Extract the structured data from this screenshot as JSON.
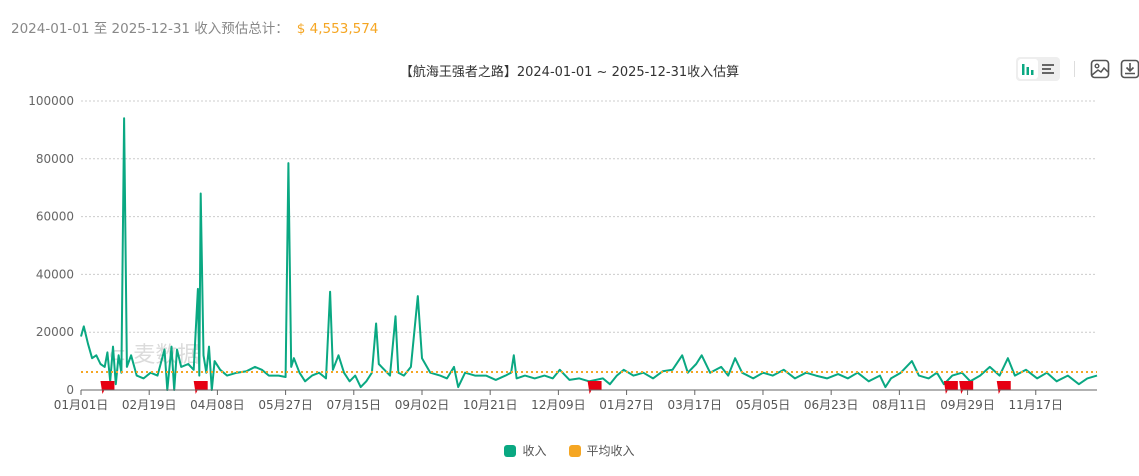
{
  "summary": {
    "range": "2024-01-01 至 2025-12-31 收入预估总计：",
    "total": "$ 4,553,574"
  },
  "toolbar": {
    "icons": [
      "bar-chart-icon",
      "list-icon",
      "image-icon",
      "download-icon"
    ]
  },
  "watermark": "麦数据",
  "colors": {
    "income": "#0aa882",
    "average": "#f5a623",
    "flag": "#e60012"
  },
  "chart_data": {
    "type": "line",
    "title": "【航海王强者之路】2024-01-01 ~ 2025-12-31收入估算",
    "ylim": [
      0,
      100000
    ],
    "yticks": [
      0,
      20000,
      40000,
      60000,
      80000,
      100000
    ],
    "xlim": [
      "2024-01-01",
      "2025-12-31"
    ],
    "xticks": [
      [
        "2024-01-01",
        "01月01日"
      ],
      [
        "2024-02-19",
        "02月19日"
      ],
      [
        "2024-04-08",
        "04月08日"
      ],
      [
        "2024-05-27",
        "05月27日"
      ],
      [
        "2024-07-15",
        "07月15日"
      ],
      [
        "2024-09-02",
        "09月02日"
      ],
      [
        "2024-10-21",
        "10月21日"
      ],
      [
        "2024-12-09",
        "12月09日"
      ],
      [
        "2025-01-27",
        "01月27日"
      ],
      [
        "2025-03-17",
        "03月17日"
      ],
      [
        "2025-05-05",
        "05月05日"
      ],
      [
        "2025-06-23",
        "06月23日"
      ],
      [
        "2025-08-11",
        "08月11日"
      ],
      [
        "2025-09-29",
        "09月29日"
      ],
      [
        "2025-11-17",
        "11月17日"
      ]
    ],
    "grid": true,
    "legend_position": "bottom",
    "series": [
      {
        "name": "收入",
        "color": "#0aa882",
        "points": [
          [
            "2024-01-01",
            18500
          ],
          [
            "2024-01-03",
            22000
          ],
          [
            "2024-01-06",
            16000
          ],
          [
            "2024-01-09",
            11000
          ],
          [
            "2024-01-12",
            12000
          ],
          [
            "2024-01-15",
            9000
          ],
          [
            "2024-01-18",
            8000
          ],
          [
            "2024-01-20",
            13000
          ],
          [
            "2024-01-22",
            3000
          ],
          [
            "2024-01-24",
            15000
          ],
          [
            "2024-01-26",
            2000
          ],
          [
            "2024-01-28",
            12000
          ],
          [
            "2024-01-30",
            6000
          ],
          [
            "2024-02-01",
            94000
          ],
          [
            "2024-02-03",
            8000
          ],
          [
            "2024-02-06",
            12000
          ],
          [
            "2024-02-10",
            5000
          ],
          [
            "2024-02-15",
            4000
          ],
          [
            "2024-02-20",
            6000
          ],
          [
            "2024-02-25",
            5000
          ],
          [
            "2024-03-01",
            14000
          ],
          [
            "2024-03-03",
            0
          ],
          [
            "2024-03-06",
            15000
          ],
          [
            "2024-03-08",
            0
          ],
          [
            "2024-03-10",
            14000
          ],
          [
            "2024-03-13",
            8000
          ],
          [
            "2024-03-18",
            9000
          ],
          [
            "2024-03-22",
            7000
          ],
          [
            "2024-03-25",
            35000
          ],
          [
            "2024-03-26",
            5000
          ],
          [
            "2024-03-27",
            68000
          ],
          [
            "2024-03-29",
            12000
          ],
          [
            "2024-03-31",
            6000
          ],
          [
            "2024-04-02",
            15000
          ],
          [
            "2024-04-04",
            0
          ],
          [
            "2024-04-06",
            10000
          ],
          [
            "2024-04-10",
            7000
          ],
          [
            "2024-04-15",
            5000
          ],
          [
            "2024-04-22",
            6000
          ],
          [
            "2024-04-29",
            6500
          ],
          [
            "2024-05-05",
            8000
          ],
          [
            "2024-05-10",
            7000
          ],
          [
            "2024-05-15",
            5000
          ],
          [
            "2024-05-22",
            5000
          ],
          [
            "2024-05-27",
            4500
          ],
          [
            "2024-05-29",
            78500
          ],
          [
            "2024-05-31",
            8000
          ],
          [
            "2024-06-02",
            11000
          ],
          [
            "2024-06-06",
            6000
          ],
          [
            "2024-06-10",
            3000
          ],
          [
            "2024-06-15",
            5000
          ],
          [
            "2024-06-20",
            6000
          ],
          [
            "2024-06-25",
            4000
          ],
          [
            "2024-06-28",
            34000
          ],
          [
            "2024-06-30",
            7000
          ],
          [
            "2024-07-04",
            12000
          ],
          [
            "2024-07-08",
            6000
          ],
          [
            "2024-07-12",
            3000
          ],
          [
            "2024-07-16",
            5000
          ],
          [
            "2024-07-20",
            1000
          ],
          [
            "2024-07-24",
            3000
          ],
          [
            "2024-07-28",
            6000
          ],
          [
            "2024-07-31",
            23000
          ],
          [
            "2024-08-02",
            9000
          ],
          [
            "2024-08-06",
            7000
          ],
          [
            "2024-08-10",
            5000
          ],
          [
            "2024-08-14",
            25500
          ],
          [
            "2024-08-16",
            6000
          ],
          [
            "2024-08-20",
            5000
          ],
          [
            "2024-08-25",
            8000
          ],
          [
            "2024-08-30",
            32500
          ],
          [
            "2024-09-02",
            11000
          ],
          [
            "2024-09-08",
            6000
          ],
          [
            "2024-09-15",
            5000
          ],
          [
            "2024-09-20",
            4000
          ],
          [
            "2024-09-25",
            8000
          ],
          [
            "2024-09-28",
            1000
          ],
          [
            "2024-10-03",
            6000
          ],
          [
            "2024-10-10",
            5000
          ],
          [
            "2024-10-18",
            5000
          ],
          [
            "2024-10-25",
            3500
          ],
          [
            "2024-11-01",
            5000
          ],
          [
            "2024-11-05",
            6000
          ],
          [
            "2024-11-07",
            12000
          ],
          [
            "2024-11-09",
            4000
          ],
          [
            "2024-11-15",
            5000
          ],
          [
            "2024-11-22",
            4000
          ],
          [
            "2024-11-29",
            5000
          ],
          [
            "2024-12-05",
            4000
          ],
          [
            "2024-12-10",
            7000
          ],
          [
            "2024-12-17",
            3500
          ],
          [
            "2024-12-24",
            4000
          ],
          [
            "2024-12-31",
            3000
          ],
          [
            "2025-01-05",
            3500
          ],
          [
            "2025-01-10",
            4000
          ],
          [
            "2025-01-15",
            2000
          ],
          [
            "2025-01-20",
            5000
          ],
          [
            "2025-01-25",
            7000
          ],
          [
            "2025-02-01",
            5000
          ],
          [
            "2025-02-08",
            6000
          ],
          [
            "2025-02-15",
            4000
          ],
          [
            "2025-02-22",
            6500
          ],
          [
            "2025-03-01",
            7000
          ],
          [
            "2025-03-08",
            12000
          ],
          [
            "2025-03-12",
            6000
          ],
          [
            "2025-03-18",
            9000
          ],
          [
            "2025-03-22",
            12000
          ],
          [
            "2025-03-28",
            6000
          ],
          [
            "2025-04-05",
            8000
          ],
          [
            "2025-04-10",
            5000
          ],
          [
            "2025-04-15",
            11000
          ],
          [
            "2025-04-20",
            6000
          ],
          [
            "2025-04-28",
            4000
          ],
          [
            "2025-05-05",
            6000
          ],
          [
            "2025-05-12",
            5000
          ],
          [
            "2025-05-20",
            7000
          ],
          [
            "2025-05-28",
            4000
          ],
          [
            "2025-06-05",
            6000
          ],
          [
            "2025-06-12",
            5000
          ],
          [
            "2025-06-20",
            4000
          ],
          [
            "2025-06-28",
            5500
          ],
          [
            "2025-07-05",
            4000
          ],
          [
            "2025-07-12",
            6000
          ],
          [
            "2025-07-20",
            3000
          ],
          [
            "2025-07-28",
            5000
          ],
          [
            "2025-08-01",
            1000
          ],
          [
            "2025-08-05",
            4000
          ],
          [
            "2025-08-12",
            6000
          ],
          [
            "2025-08-20",
            10000
          ],
          [
            "2025-08-25",
            5000
          ],
          [
            "2025-09-01",
            4000
          ],
          [
            "2025-09-07",
            6000
          ],
          [
            "2025-09-12",
            2000
          ],
          [
            "2025-09-18",
            5000
          ],
          [
            "2025-09-25",
            6000
          ],
          [
            "2025-10-01",
            3000
          ],
          [
            "2025-10-08",
            5000
          ],
          [
            "2025-10-15",
            8000
          ],
          [
            "2025-10-22",
            5000
          ],
          [
            "2025-10-28",
            11000
          ],
          [
            "2025-11-02",
            5000
          ],
          [
            "2025-11-10",
            7000
          ],
          [
            "2025-11-18",
            4000
          ],
          [
            "2025-11-25",
            6000
          ],
          [
            "2025-12-02",
            3000
          ],
          [
            "2025-12-10",
            5000
          ],
          [
            "2025-12-18",
            2000
          ],
          [
            "2025-12-24",
            4000
          ],
          [
            "2025-12-31",
            5000
          ]
        ]
      },
      {
        "name": "平均收入",
        "color": "#f5a623",
        "value": 6229
      }
    ],
    "event_flags": [
      "2024-01-20",
      "2024-03-27",
      "2025-01-04",
      "2025-09-17",
      "2025-09-28",
      "2025-10-25"
    ]
  }
}
